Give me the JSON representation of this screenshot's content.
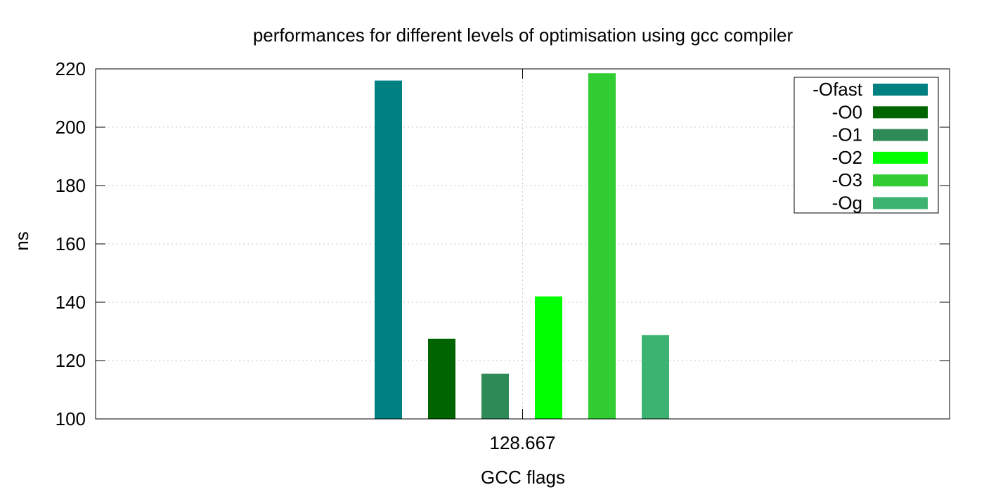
{
  "chart_data": {
    "type": "bar",
    "title": "performances for different levels of optimisation using gcc compiler",
    "xlabel": "GCC flags",
    "ylabel": "ns",
    "categories": [
      "128.667"
    ],
    "ylim": [
      100,
      220
    ],
    "yticks": [
      100,
      120,
      140,
      160,
      180,
      200,
      220
    ],
    "grid": true,
    "legend_position": "top-right",
    "series": [
      {
        "name": "-Ofast",
        "values": [
          216
        ],
        "color": "#008080"
      },
      {
        "name": "-O0",
        "values": [
          127.5
        ],
        "color": "#006400"
      },
      {
        "name": "-O1",
        "values": [
          115.5
        ],
        "color": "#2e8b57"
      },
      {
        "name": "-O2",
        "values": [
          142
        ],
        "color": "#00ff00"
      },
      {
        "name": "-O3",
        "values": [
          218.5
        ],
        "color": "#32cd32"
      },
      {
        "name": "-Og",
        "values": [
          128.7
        ],
        "color": "#3cb371"
      }
    ]
  }
}
